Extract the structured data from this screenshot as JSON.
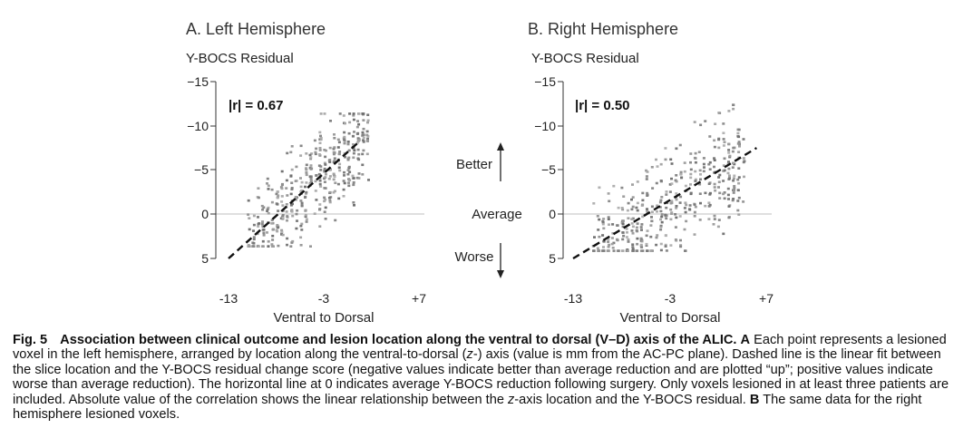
{
  "chart_data": [
    {
      "type": "scatter",
      "title": "A. Left Hemisphere",
      "ylabel": "Y-BOCS Residual",
      "xlabel": "Ventral to Dorsal",
      "xlim": [
        -13,
        7
      ],
      "ylim": [
        5,
        -15
      ],
      "y_inverted": true,
      "xticks": [
        "-13",
        "-3",
        "+7"
      ],
      "yticks": [
        "−15",
        "−10",
        "−5",
        "0",
        "5"
      ],
      "annotation": "|r| = 0.67",
      "fit_line": {
        "x": [
          -13,
          0.5
        ],
        "y": [
          5,
          -8
        ]
      },
      "reference_line_y": 0,
      "point_cloud": {
        "x_range": [
          -11,
          1.5
        ],
        "y_range": [
          3.5,
          -11.5
        ],
        "approx_count": 420,
        "noise_sd": 2.6
      }
    },
    {
      "type": "scatter",
      "title": "B. Right Hemisphere",
      "ylabel": "Y-BOCS Residual",
      "xlabel": "Ventral to Dorsal",
      "xlim": [
        -13,
        7
      ],
      "ylim": [
        5,
        -15
      ],
      "y_inverted": true,
      "xticks": [
        "-13",
        "-3",
        "+7"
      ],
      "yticks": [
        "−15",
        "−10",
        "−5",
        "0",
        "5"
      ],
      "annotation": "|r| = 0.50",
      "fit_line": {
        "x": [
          -13,
          6
        ],
        "y": [
          5,
          -7.5
        ]
      },
      "reference_line_y": 0,
      "point_cloud": {
        "x_range": [
          -11,
          4.5
        ],
        "y_range": [
          4,
          -12.5
        ],
        "approx_count": 420,
        "noise_sd": 3.0
      }
    }
  ],
  "center_labels": {
    "better": "Better",
    "average": "Average",
    "worse": "Worse"
  },
  "colors": {
    "point": "#8a8a8a",
    "fit_line": "#111111",
    "zero_line": "#bfbfbf",
    "axis": "#333333"
  },
  "caption": {
    "fig_label": "Fig. 5",
    "title": "Association between clinical outcome and lesion location along the ventral to dorsal (V–D) axis of the ALIC.",
    "a_label": "A",
    "a_text_1": " Each point represents a lesioned voxel in the left hemisphere, arranged by location along the ventral-to-dorsal (",
    "z_italic": "z",
    "a_text_2": "-) axis (value is mm from the AC-PC plane). Dashed line is the linear fit between the slice location and the Y-BOCS residual change score (negative values indicate better than average reduction and are plotted “up”; positive values indicate worse than average reduction). The horizontal line at 0 indicates average Y-BOCS reduction following surgery. Only voxels lesioned in at least three patients are included. Absolute value of the correlation shows the linear relationship between the ",
    "z_italic_2": "z",
    "a_text_3": "-axis location and the Y-BOCS residual. ",
    "b_label": "B",
    "b_text": " The same data for the right hemisphere lesioned voxels."
  }
}
